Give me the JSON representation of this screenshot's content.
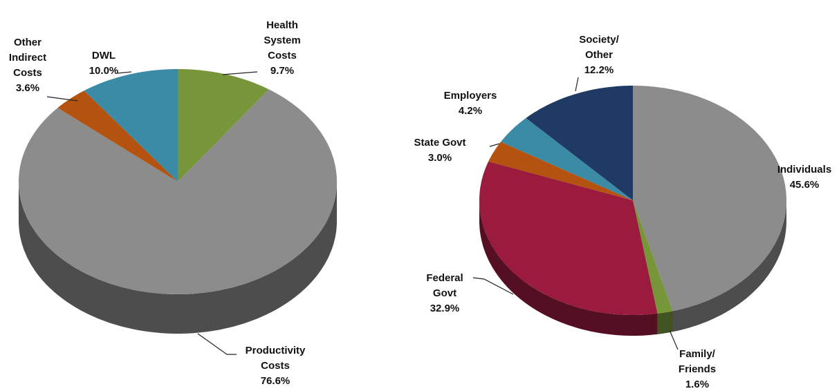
{
  "chart_data": [
    {
      "type": "pie",
      "categories": [
        "Health System Costs",
        "Productivity Costs",
        "Other Indirect Costs",
        "DWL"
      ],
      "values": [
        9.7,
        76.6,
        3.6,
        10.0
      ],
      "value_labels": [
        "9.7%",
        "76.6%",
        "3.6%",
        "10.0%"
      ],
      "colors": [
        "#77963a",
        "#8c8c8c",
        "#b3530f",
        "#3c8ba6"
      ]
    },
    {
      "type": "pie",
      "categories": [
        "Individuals",
        "Family/ Friends",
        "Federal Govt",
        "State Govt",
        "Employers",
        "Society/ Other"
      ],
      "values": [
        45.6,
        1.6,
        32.9,
        3.0,
        4.2,
        12.2
      ],
      "value_labels": [
        "45.6%",
        "1.6%",
        "32.9%",
        "3.0%",
        "4.2%",
        "12.2%"
      ],
      "colors": [
        "#8c8c8c",
        "#77963a",
        "#9b1b3e",
        "#b3530f",
        "#3c8ba6",
        "#1f3b63"
      ]
    }
  ]
}
